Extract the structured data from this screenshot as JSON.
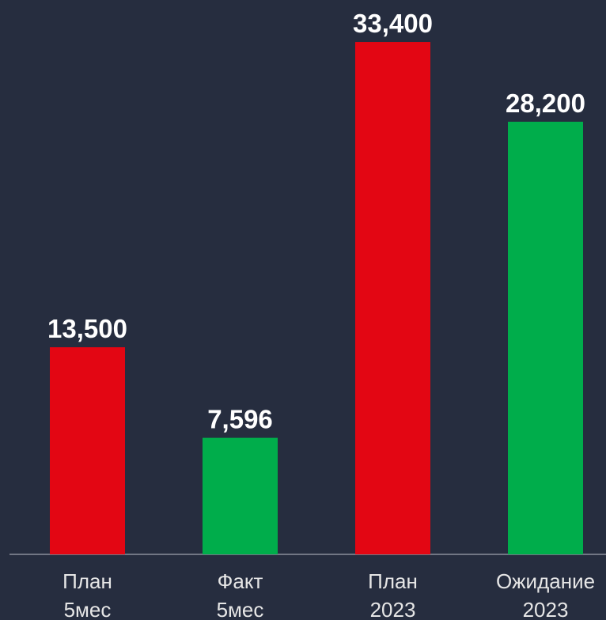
{
  "chart_data": {
    "type": "bar",
    "categories": [
      [
        "План",
        "5мес"
      ],
      [
        "Факт",
        "5мес"
      ],
      [
        "План",
        "2023"
      ],
      [
        "Ожидание",
        "2023"
      ]
    ],
    "values": [
      13500,
      7596,
      33400,
      28200
    ],
    "value_labels": [
      "13,500",
      "7,596",
      "33,400",
      "28,200"
    ],
    "colors": [
      "#e30613",
      "#00ad4b",
      "#e30613",
      "#00ad4b"
    ]
  }
}
